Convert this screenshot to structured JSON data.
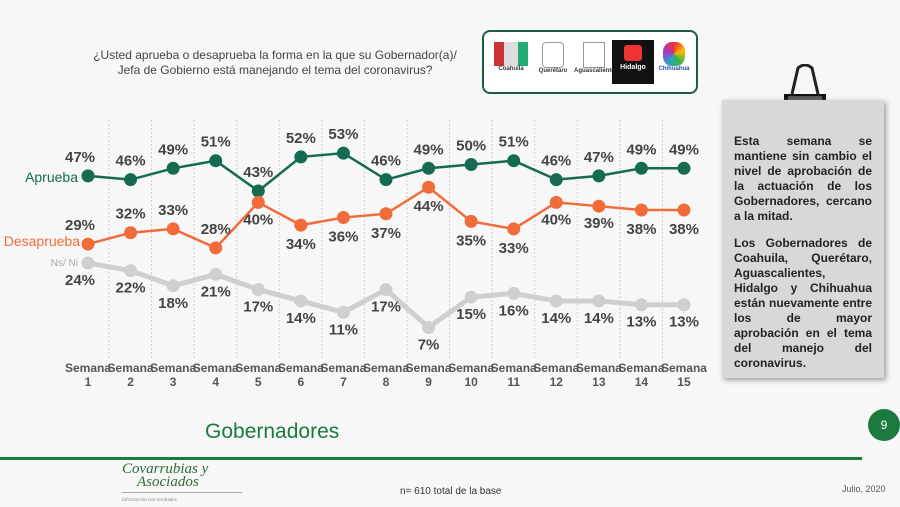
{
  "question": "¿Usted aprueba o desaprueba la forma en la que su Gobernador(a)/ Jefa de Gobierno está manejando el tema del coronavirus?",
  "logos": [
    "Coahuila",
    "Querétaro",
    "Aguascalientes",
    "Hidalgo",
    "Chihuahua"
  ],
  "chart_data": {
    "type": "line",
    "categories": [
      "Semana 1",
      "Semana 2",
      "Semana 3",
      "Semana 4",
      "Semana 5",
      "Semana 6",
      "Semana 7",
      "Semana 8",
      "Semana 9",
      "Semana 10",
      "Semana 11",
      "Semana 12",
      "Semana 13",
      "Semana 14",
      "Semana 15"
    ],
    "series": [
      {
        "name": "Aprueba",
        "color": "#146b52",
        "values": [
          47,
          46,
          49,
          51,
          43,
          52,
          53,
          46,
          49,
          50,
          51,
          46,
          47,
          49,
          49
        ]
      },
      {
        "name": "Desaprueba",
        "color": "#f26b3a",
        "values": [
          29,
          32,
          33,
          28,
          40,
          34,
          36,
          37,
          44,
          35,
          33,
          40,
          39,
          38,
          38
        ]
      },
      {
        "name": "Ns/ Ni",
        "color": "#cfcfcf",
        "values": [
          24,
          22,
          18,
          21,
          17,
          14,
          11,
          17,
          7,
          15,
          16,
          14,
          14,
          13,
          13
        ]
      }
    ],
    "unit": "%",
    "grid": "vertical dashed"
  },
  "panel": {
    "p1": "Esta semana se mantiene sin cambio el nivel de aprobación de la actuación de los Gobernadores, cercano a la mitad.",
    "p2": "Los Gobernadores de Coahuila, Querétaro, Aguascalientes, Hidalgo y Chihuahua están nuevamente entre los de mayor aprobación en el tema del manejo del coronavirus."
  },
  "title": "Gobernadores",
  "page_number": "9",
  "base": "n= 610 total de la base",
  "date": "Julio, 2020",
  "brand": {
    "name1": "Covarrubias y",
    "name2": "Asociados",
    "tagline": "Información con resultados"
  }
}
